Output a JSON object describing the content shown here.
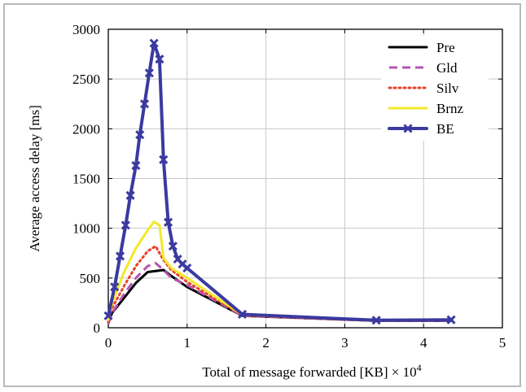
{
  "chart_data": {
    "type": "line",
    "title": "",
    "xlabel": "Total of message forwarded [KB] × 10",
    "xlabel_exponent": "4",
    "ylabel": "Average access delay [ms]",
    "xlim": [
      0,
      5
    ],
    "ylim": [
      0,
      3000
    ],
    "x_ticks": [
      "0",
      "1",
      "2",
      "3",
      "4",
      "5"
    ],
    "y_ticks": [
      "0",
      "500",
      "1000",
      "1500",
      "2000",
      "2500",
      "3000"
    ],
    "grid": true,
    "legend_position": "top-right",
    "series": [
      {
        "name": "Pre",
        "color": "#000000",
        "style": "solid",
        "x": [
          0.0,
          0.05,
          0.2,
          0.35,
          0.5,
          0.6,
          0.7,
          0.8,
          1.0,
          1.7,
          3.4,
          4.35
        ],
        "y": [
          60,
          150,
          300,
          450,
          560,
          570,
          580,
          520,
          410,
          120,
          70,
          70
        ]
      },
      {
        "name": "Gld",
        "color": "#b455b4",
        "style": "dashed",
        "x": [
          0.0,
          0.05,
          0.2,
          0.35,
          0.5,
          0.6,
          0.7,
          0.8,
          1.0,
          1.7,
          3.4,
          4.35
        ],
        "y": [
          40,
          150,
          340,
          500,
          620,
          650,
          580,
          500,
          430,
          120,
          70,
          70
        ]
      },
      {
        "name": "Silv",
        "color": "#e8402a",
        "style": "dotted",
        "x": [
          0.0,
          0.05,
          0.2,
          0.35,
          0.5,
          0.6,
          0.7,
          0.8,
          1.0,
          1.7,
          3.4,
          4.35
        ],
        "y": [
          60,
          200,
          420,
          620,
          770,
          820,
          680,
          580,
          460,
          125,
          70,
          75
        ]
      },
      {
        "name": "Brnz",
        "color": "#f4e828",
        "style": "solid",
        "x": [
          0.0,
          0.05,
          0.2,
          0.35,
          0.5,
          0.58,
          0.65,
          0.7,
          0.8,
          1.0,
          1.7,
          3.4,
          4.35
        ],
        "y": [
          80,
          250,
          560,
          800,
          980,
          1065,
          1030,
          700,
          600,
          500,
          130,
          75,
          80
        ]
      },
      {
        "name": "BE",
        "color": "#3a3aa0",
        "style": "solid-x-markers",
        "x": [
          0.0,
          0.08,
          0.15,
          0.22,
          0.28,
          0.35,
          0.4,
          0.46,
          0.52,
          0.58,
          0.65,
          0.7,
          0.76,
          0.82,
          0.88,
          0.94,
          1.0,
          1.7,
          3.4,
          4.35
        ],
        "y": [
          120,
          410,
          720,
          1030,
          1330,
          1630,
          1940,
          2250,
          2560,
          2860,
          2700,
          1690,
          1060,
          820,
          690,
          640,
          600,
          135,
          75,
          80
        ]
      }
    ]
  }
}
